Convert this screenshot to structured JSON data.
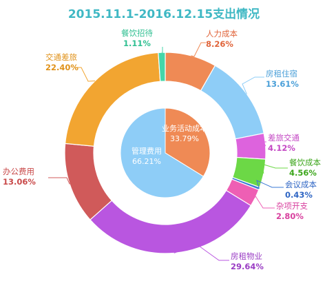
{
  "chart_data": {
    "type": "pie",
    "title": "2015.11.1-2016.12.15支出情况",
    "title_color": "#3fb8c4",
    "inner_ring": [
      {
        "name": "业务活动成本",
        "value": 33.79,
        "label": "33.79%",
        "color": "#ef8a55"
      },
      {
        "name": "管理费用",
        "value": 66.21,
        "label": "66.21%",
        "color": "#8ecdf7"
      }
    ],
    "outer_ring": [
      {
        "name": "人力成本",
        "value": 8.26,
        "label": "8.26%",
        "color": "#ef8a55",
        "text_color": "#e0643a"
      },
      {
        "name": "房租住宿",
        "value": 13.61,
        "label": "13.61%",
        "color": "#8ecdf7",
        "text_color": "#4a9fd8"
      },
      {
        "name": "差旅交通",
        "value": 4.12,
        "label": "4.12%",
        "color": "#dd63dd",
        "text_color": "#c448c4"
      },
      {
        "name": "餐饮成本",
        "value": 4.56,
        "label": "4.56%",
        "color": "#6cd846",
        "text_color": "#3da61c"
      },
      {
        "name": "会议成本",
        "value": 0.43,
        "label": "0.43%",
        "color": "#3a78d4",
        "text_color": "#2f66c4"
      },
      {
        "name": "杂项开支",
        "value": 2.8,
        "label": "2.80%",
        "color": "#ee5fb4",
        "text_color": "#d8409e"
      },
      {
        "name": "房租物业",
        "value": 29.64,
        "label": "29.64%",
        "color": "#b956e0",
        "text_color": "#9a3dc4"
      },
      {
        "name": "办公费用",
        "value": 13.06,
        "label": "13.06%",
        "color": "#d05a5a",
        "text_color": "#c94a4a"
      },
      {
        "name": "交通差旅",
        "value": 22.4,
        "label": "22.40%",
        "color": "#f2a531",
        "text_color": "#e0921a"
      },
      {
        "name": "餐饮招待",
        "value": 1.11,
        "label": "1.11%",
        "color": "#45d6a9",
        "text_color": "#2fbf91"
      }
    ]
  }
}
